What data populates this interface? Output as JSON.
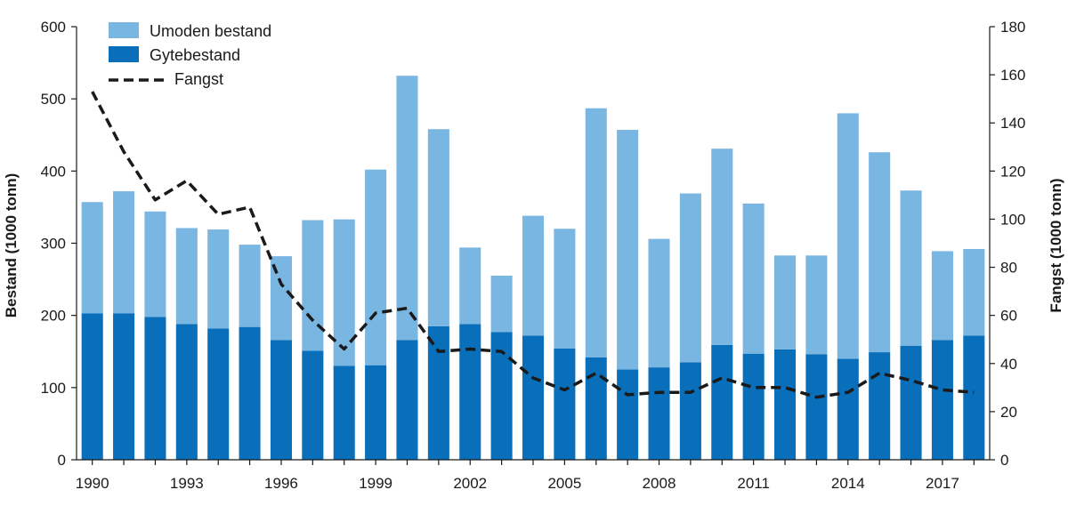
{
  "chart_data": {
    "type": "bar",
    "title": "",
    "ylabel": "Bestand (1000 tonn)",
    "y2label": "Fangst (1000 tonn)",
    "ylim": [
      0,
      600
    ],
    "y2lim": [
      0,
      180
    ],
    "yticks": [
      "0",
      "100",
      "200",
      "300",
      "400",
      "500",
      "600"
    ],
    "y2ticks": [
      "0",
      "20",
      "40",
      "60",
      "80",
      "100",
      "120",
      "140",
      "160",
      "180"
    ],
    "x": [
      1990,
      1991,
      1992,
      1993,
      1994,
      1995,
      1996,
      1997,
      1998,
      1999,
      2000,
      2001,
      2002,
      2003,
      2004,
      2005,
      2006,
      2007,
      2008,
      2009,
      2010,
      2011,
      2012,
      2013,
      2014,
      2015,
      2016,
      2017,
      2018
    ],
    "xtick_labels": [
      "1990",
      "1993",
      "1996",
      "1999",
      "2002",
      "2005",
      "2008",
      "2011",
      "2014",
      "2017"
    ],
    "legend_position": "top-left",
    "colors": {
      "umoden": "#7ab6e2",
      "gyte": "#0a6fba",
      "fangst": "#1a1a1a",
      "axis": "#1a1a1a"
    },
    "series": [
      {
        "name": "Umoden bestand",
        "kind": "stacked-bar-top",
        "values": [
          154,
          169,
          146,
          133,
          137,
          114,
          116,
          181,
          203,
          271,
          366,
          273,
          106,
          78,
          166,
          166,
          345,
          332,
          178,
          234,
          272,
          208,
          130,
          137,
          340,
          277,
          215,
          123,
          120
        ]
      },
      {
        "name": "Gytebestand",
        "kind": "stacked-bar-base",
        "values": [
          203,
          203,
          198,
          188,
          182,
          184,
          166,
          151,
          130,
          131,
          166,
          185,
          188,
          177,
          172,
          154,
          142,
          125,
          128,
          135,
          159,
          147,
          153,
          146,
          140,
          149,
          158,
          166,
          172
        ]
      },
      {
        "name": "Fangst",
        "kind": "line-right-axis",
        "values": [
          153,
          128,
          108,
          116,
          102,
          105,
          73,
          58,
          46,
          61,
          63,
          45,
          46,
          45,
          34,
          29,
          36,
          27,
          28,
          28,
          34,
          30,
          30,
          26,
          28,
          36,
          33,
          29,
          28
        ]
      }
    ]
  }
}
